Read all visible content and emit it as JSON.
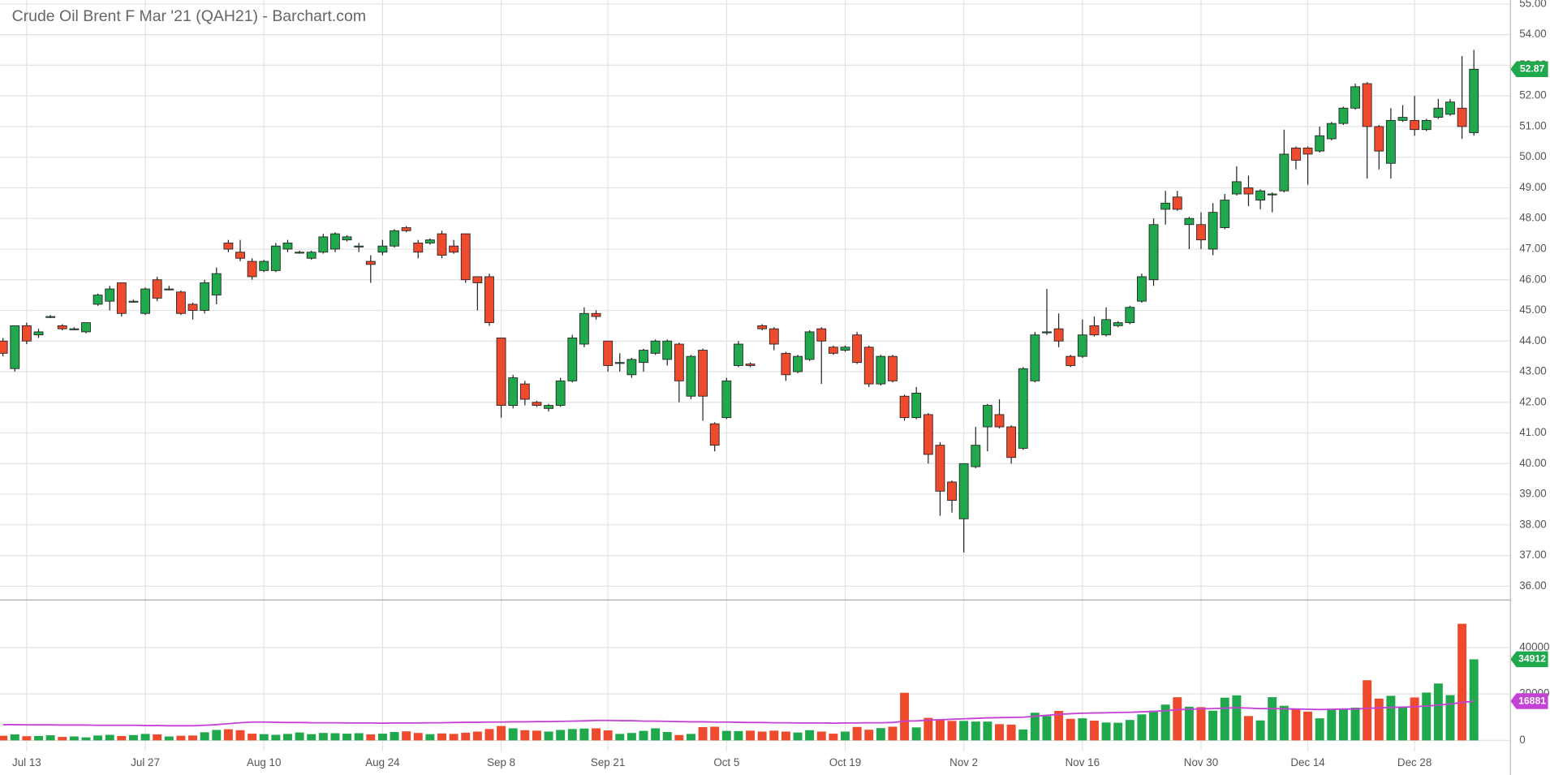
{
  "chart_data": {
    "type": "candlestick",
    "title": "Crude Oil Brent F Mar '21 (QAH21) - Barchart.com",
    "categories": [
      null,
      null,
      "Jul 13",
      null,
      null,
      null,
      null,
      null,
      null,
      null,
      null,
      null,
      "Jul 27",
      null,
      null,
      null,
      null,
      null,
      null,
      null,
      null,
      null,
      "Aug 10",
      null,
      null,
      null,
      null,
      null,
      null,
      null,
      null,
      null,
      "Aug 24",
      null,
      null,
      null,
      null,
      null,
      null,
      null,
      null,
      null,
      "Sep 8",
      null,
      null,
      null,
      null,
      null,
      null,
      null,
      null,
      "Sep 21",
      null,
      null,
      null,
      null,
      null,
      null,
      null,
      null,
      null,
      "Oct 5",
      null,
      null,
      null,
      null,
      null,
      null,
      null,
      null,
      null,
      "Oct 19",
      null,
      null,
      null,
      null,
      null,
      null,
      null,
      null,
      null,
      "Nov 2",
      null,
      null,
      null,
      null,
      null,
      null,
      null,
      null,
      null,
      "Nov 16",
      null,
      null,
      null,
      null,
      null,
      null,
      null,
      null,
      null,
      "Nov 30",
      null,
      null,
      null,
      null,
      null,
      null,
      null,
      null,
      "Dec 14",
      null,
      null,
      null,
      null,
      null,
      null,
      null,
      null,
      "Dec 28",
      null,
      null,
      null,
      null,
      null
    ],
    "open": [
      44.0,
      43.1,
      44.5,
      44.2,
      44.8,
      44.5,
      44.4,
      44.3,
      45.2,
      45.3,
      45.9,
      45.3,
      44.9,
      46.0,
      45.7,
      45.6,
      45.2,
      45.0,
      45.5,
      47.2,
      46.9,
      46.6,
      46.3,
      46.3,
      47.0,
      46.9,
      46.7,
      46.9,
      47.0,
      47.3,
      47.1,
      46.6,
      46.9,
      47.1,
      47.7,
      47.2,
      47.2,
      47.5,
      47.1,
      47.5,
      46.1,
      46.1,
      44.1,
      41.9,
      42.6,
      42.0,
      41.8,
      41.9,
      42.7,
      43.9,
      44.9,
      44.0,
      43.3,
      42.9,
      43.3,
      43.6,
      43.4,
      43.9,
      42.2,
      43.7,
      41.3,
      41.5,
      43.2,
      43.25,
      44.5,
      44.4,
      43.6,
      43.0,
      43.4,
      44.4,
      43.8,
      43.7,
      44.2,
      43.8,
      42.6,
      43.5,
      42.2,
      41.5,
      41.6,
      40.6,
      39.4,
      38.2,
      39.9,
      41.2,
      41.6,
      41.2,
      40.5,
      42.7,
      44.3,
      44.4,
      43.5,
      43.5,
      44.5,
      44.2,
      44.5,
      44.6,
      45.3,
      46.0,
      48.3,
      48.7,
      47.8,
      47.8,
      47.0,
      47.7,
      48.8,
      49.0,
      48.6,
      48.8,
      48.9,
      50.3,
      50.3,
      50.2,
      50.6,
      51.1,
      51.6,
      52.4,
      51.0,
      49.8,
      51.2,
      51.2,
      50.9,
      51.3,
      51.4,
      51.6,
      50.8
    ],
    "high": [
      44.1,
      44.5,
      44.6,
      44.4,
      44.85,
      44.55,
      44.45,
      44.6,
      45.55,
      45.8,
      45.9,
      45.35,
      45.75,
      46.1,
      45.8,
      45.65,
      45.25,
      46.0,
      46.4,
      47.3,
      47.3,
      46.7,
      46.65,
      47.2,
      47.3,
      46.95,
      46.95,
      47.5,
      47.55,
      47.45,
      47.2,
      46.8,
      47.3,
      47.65,
      47.75,
      47.3,
      47.35,
      47.6,
      47.3,
      47.5,
      46.1,
      46.2,
      44.1,
      42.9,
      42.7,
      42.05,
      41.95,
      42.8,
      44.2,
      45.1,
      45.0,
      44.0,
      43.6,
      43.45,
      43.75,
      44.05,
      44.05,
      43.95,
      43.55,
      43.75,
      41.35,
      42.8,
      44.0,
      43.3,
      44.55,
      44.45,
      43.65,
      43.55,
      44.35,
      44.45,
      43.85,
      43.85,
      44.3,
      43.85,
      43.55,
      43.55,
      42.25,
      42.5,
      41.65,
      40.7,
      39.45,
      40.0,
      41.2,
      41.95,
      42.1,
      41.25,
      43.15,
      44.3,
      45.7,
      44.9,
      43.55,
      44.7,
      44.8,
      45.1,
      44.65,
      45.15,
      46.2,
      48.0,
      48.9,
      48.9,
      48.05,
      48.2,
      48.5,
      48.8,
      49.7,
      49.4,
      48.95,
      48.85,
      50.9,
      50.35,
      50.35,
      51.0,
      51.15,
      51.65,
      52.4,
      52.45,
      51.05,
      51.6,
      51.7,
      52.0,
      51.25,
      51.9,
      51.9,
      53.3,
      53.5
    ],
    "low": [
      43.5,
      43.0,
      43.9,
      44.1,
      44.75,
      44.35,
      44.35,
      44.25,
      45.15,
      45.0,
      44.8,
      45.25,
      44.85,
      45.3,
      45.65,
      44.85,
      44.7,
      44.9,
      45.2,
      46.9,
      46.6,
      46.0,
      46.25,
      46.25,
      46.9,
      46.85,
      46.65,
      46.85,
      46.9,
      47.25,
      46.9,
      45.9,
      46.8,
      47.05,
      47.55,
      46.7,
      47.15,
      46.7,
      46.85,
      45.9,
      45.0,
      44.5,
      41.5,
      41.8,
      41.9,
      41.85,
      41.7,
      41.85,
      42.65,
      43.8,
      44.7,
      43.0,
      43.0,
      42.8,
      43.0,
      43.55,
      43.2,
      42.0,
      42.1,
      41.4,
      40.4,
      41.45,
      43.15,
      43.15,
      44.35,
      43.7,
      42.7,
      42.95,
      43.35,
      42.6,
      43.55,
      43.65,
      43.25,
      42.5,
      42.55,
      42.65,
      41.4,
      41.45,
      40.0,
      38.3,
      38.4,
      37.1,
      39.85,
      40.4,
      41.15,
      40.0,
      40.45,
      42.65,
      44.2,
      43.8,
      43.15,
      43.45,
      44.15,
      44.15,
      44.45,
      44.55,
      45.25,
      45.8,
      47.8,
      48.25,
      47.0,
      47.0,
      46.8,
      47.65,
      48.75,
      48.4,
      48.3,
      48.2,
      48.85,
      49.6,
      49.1,
      50.15,
      50.55,
      51.05,
      51.55,
      49.3,
      49.6,
      49.3,
      51.15,
      50.7,
      50.85,
      51.25,
      51.35,
      50.6,
      50.7
    ],
    "close": [
      43.6,
      44.5,
      44.0,
      44.3,
      44.8,
      44.4,
      44.4,
      44.6,
      45.5,
      45.7,
      44.9,
      45.3,
      45.7,
      45.4,
      45.7,
      44.9,
      45.0,
      45.9,
      46.2,
      47.0,
      46.7,
      46.1,
      46.6,
      47.1,
      47.2,
      46.9,
      46.9,
      47.4,
      47.5,
      47.4,
      47.1,
      46.5,
      47.1,
      47.6,
      47.6,
      46.9,
      47.3,
      46.8,
      46.9,
      46.0,
      45.9,
      44.6,
      41.9,
      42.8,
      42.1,
      41.9,
      41.9,
      42.7,
      44.1,
      44.9,
      44.8,
      43.2,
      43.3,
      43.4,
      43.7,
      44.0,
      44.0,
      42.7,
      43.5,
      42.2,
      40.6,
      42.7,
      43.9,
      43.2,
      44.4,
      43.9,
      42.9,
      43.5,
      44.3,
      44.0,
      43.6,
      43.8,
      43.3,
      42.6,
      43.5,
      42.7,
      41.5,
      42.3,
      40.3,
      39.1,
      38.8,
      40.0,
      40.6,
      41.9,
      41.2,
      40.2,
      43.1,
      44.2,
      44.3,
      44.0,
      43.2,
      44.2,
      44.2,
      44.7,
      44.6,
      45.1,
      46.1,
      47.8,
      48.5,
      48.3,
      48.0,
      47.3,
      48.2,
      48.6,
      49.2,
      48.8,
      48.9,
      48.8,
      50.1,
      49.9,
      50.1,
      50.7,
      51.1,
      51.6,
      52.3,
      51.0,
      50.2,
      51.2,
      51.3,
      50.9,
      51.2,
      51.6,
      51.8,
      51.0,
      52.87
    ],
    "volume": [
      2000,
      2600,
      1800,
      1900,
      2200,
      1500,
      1700,
      1300,
      2100,
      2400,
      1900,
      2300,
      2800,
      2600,
      1700,
      2000,
      2100,
      3500,
      4500,
      4800,
      4400,
      2900,
      2700,
      2400,
      2800,
      3400,
      2700,
      3200,
      3100,
      2900,
      3100,
      2600,
      2900,
      3600,
      3900,
      3200,
      2700,
      3000,
      2800,
      3300,
      3800,
      4900,
      6200,
      5200,
      4400,
      4200,
      3800,
      4500,
      4900,
      5100,
      5200,
      4300,
      2800,
      3200,
      4100,
      5200,
      3600,
      2300,
      2800,
      5700,
      5900,
      4100,
      4000,
      4200,
      3800,
      4200,
      3800,
      3400,
      4400,
      3800,
      2900,
      3800,
      5800,
      4600,
      5300,
      5900,
      20500,
      5600,
      9700,
      8900,
      8400,
      8400,
      8100,
      8100,
      7000,
      6800,
      4700,
      11900,
      10500,
      12700,
      9300,
      9500,
      8500,
      7700,
      7600,
      8800,
      11200,
      12800,
      15400,
      18600,
      14500,
      14300,
      12800,
      18400,
      19400,
      10500,
      8600,
      18600,
      14900,
      13500,
      12400,
      9500,
      13400,
      13500,
      14100,
      25900,
      18000,
      19200,
      14600,
      18500,
      20600,
      24500,
      19500,
      50200,
      34912
    ],
    "volume_ma": [
      6800,
      6800,
      6700,
      6700,
      6700,
      6600,
      6600,
      6600,
      6500,
      6500,
      6500,
      6500,
      6400,
      6400,
      6300,
      6300,
      6300,
      6500,
      6800,
      7200,
      7600,
      7900,
      7900,
      7800,
      7700,
      7700,
      7600,
      7600,
      7600,
      7500,
      7500,
      7500,
      7400,
      7500,
      7500,
      7500,
      7600,
      7600,
      7700,
      7800,
      7800,
      7900,
      7900,
      8000,
      8000,
      8100,
      8100,
      8200,
      8300,
      8400,
      8600,
      8600,
      8500,
      8500,
      8300,
      8300,
      8200,
      8100,
      8000,
      8000,
      7900,
      7900,
      7800,
      7700,
      7700,
      7600,
      7600,
      7500,
      7500,
      7500,
      7400,
      7500,
      7500,
      7600,
      7600,
      7700,
      8300,
      8400,
      8700,
      8900,
      9100,
      9300,
      9500,
      9700,
      9800,
      9900,
      10000,
      10400,
      10800,
      11200,
      11500,
      11700,
      11800,
      11900,
      12000,
      12100,
      12300,
      12500,
      12800,
      13200,
      13400,
      13600,
      13700,
      13900,
      14100,
      13900,
      13700,
      13700,
      13600,
      13500,
      13400,
      13300,
      13400,
      13500,
      13500,
      13800,
      14000,
      14200,
      14300,
      14500,
      14800,
      15200,
      15700,
      16300,
      16881
    ],
    "up_color": "#20a84c",
    "down_color": "#ee4a2e",
    "ma_color": "#c542d6",
    "ylim": [
      36,
      55
    ],
    "yticks": [
      {
        "value": 36,
        "label": "36.00"
      },
      {
        "value": 37,
        "label": "37.00"
      },
      {
        "value": 38,
        "label": "38.00"
      },
      {
        "value": 39,
        "label": "39.00"
      },
      {
        "value": 40,
        "label": "40.00"
      },
      {
        "value": 41,
        "label": "41.00"
      },
      {
        "value": 42,
        "label": "42.00"
      },
      {
        "value": 43,
        "label": "43.00"
      },
      {
        "value": 44,
        "label": "44.00"
      },
      {
        "value": 45,
        "label": "45.00"
      },
      {
        "value": 46,
        "label": "46.00"
      },
      {
        "value": 47,
        "label": "47.00"
      },
      {
        "value": 48,
        "label": "48.00"
      },
      {
        "value": 49,
        "label": "49.00"
      },
      {
        "value": 50,
        "label": "50.00"
      },
      {
        "value": 51,
        "label": "51.00"
      },
      {
        "value": 52,
        "label": "52.00"
      },
      {
        "value": 53,
        "label": "53.00"
      },
      {
        "value": 54,
        "label": "54.00"
      },
      {
        "value": 55,
        "label": "55.00"
      }
    ],
    "vlim": [
      0,
      60000
    ],
    "vticks": [
      0,
      20000,
      40000
    ],
    "grid": true
  }
}
